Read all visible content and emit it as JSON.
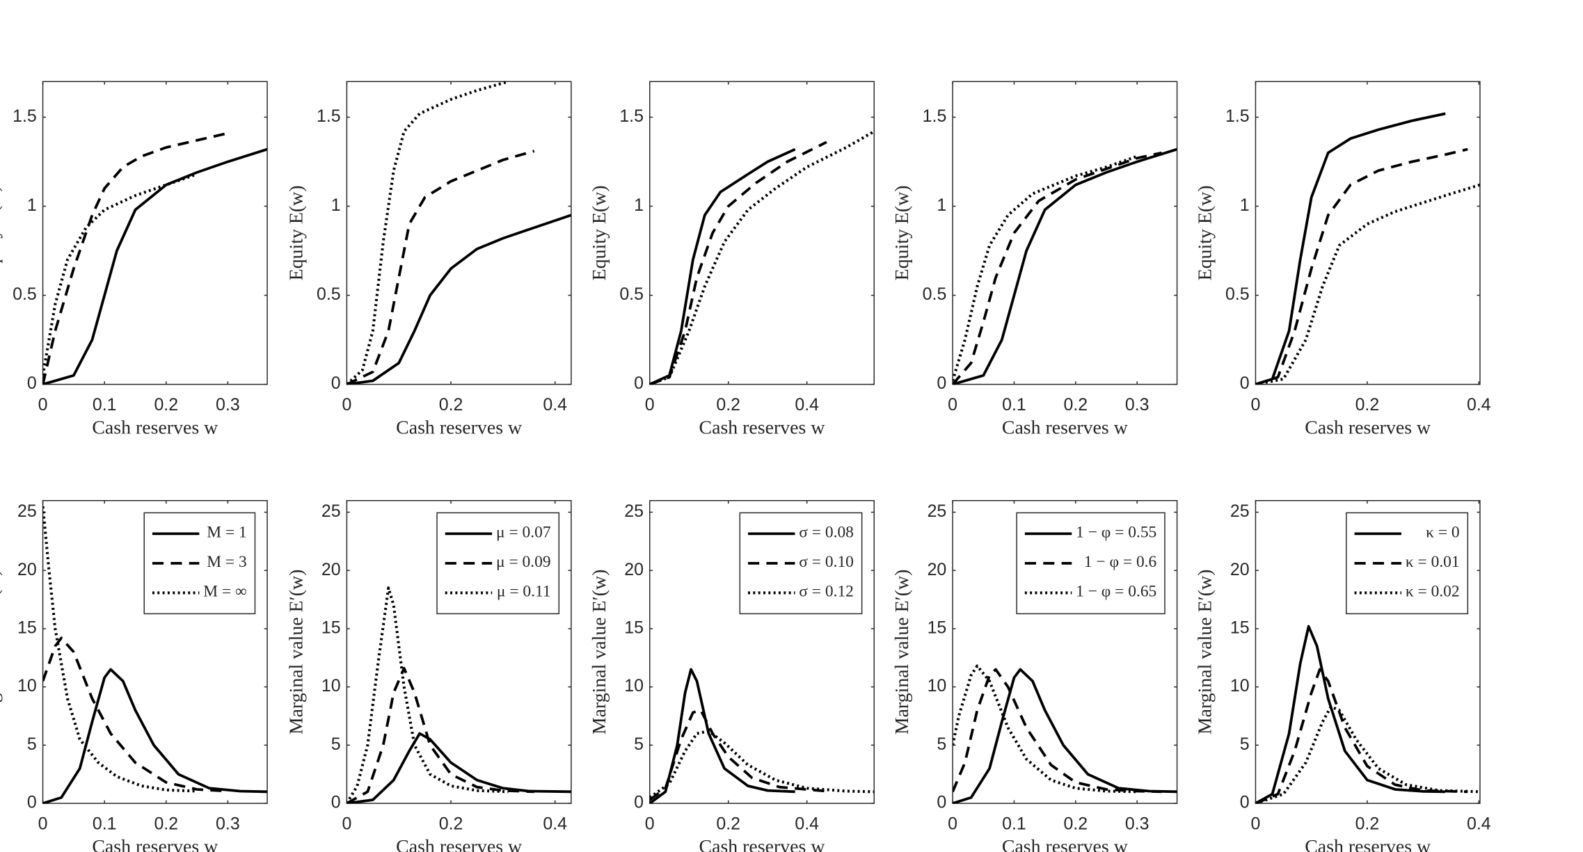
{
  "chart_data": [
    {
      "type": "line",
      "xlabel": "Cash reserves w",
      "ylabel": "Equity E(w)",
      "xlim": [
        0,
        0.364
      ],
      "ylim": [
        0,
        1.7
      ],
      "xticks": [
        0,
        0.1,
        0.2,
        0.3
      ],
      "yticks": [
        0,
        0.5,
        1,
        1.5
      ],
      "series": [
        {
          "color": "#000000",
          "dash": "solid",
          "x": [
            0,
            0.05,
            0.08,
            0.1,
            0.12,
            0.15,
            0.2,
            0.25,
            0.3,
            0.364
          ],
          "values": [
            0,
            0.05,
            0.25,
            0.5,
            0.75,
            0.98,
            1.12,
            1.19,
            1.25,
            1.32
          ]
        },
        {
          "color": "#000000",
          "dash": "dashed",
          "x": [
            0,
            0.02,
            0.05,
            0.08,
            0.1,
            0.13,
            0.16,
            0.2,
            0.25,
            0.3
          ],
          "values": [
            0,
            0.3,
            0.65,
            0.95,
            1.1,
            1.22,
            1.28,
            1.33,
            1.37,
            1.41
          ]
        },
        {
          "color": "#000000",
          "dash": "dotted",
          "x": [
            0,
            0.02,
            0.04,
            0.07,
            0.1,
            0.15,
            0.2,
            0.25
          ],
          "values": [
            0.05,
            0.45,
            0.7,
            0.88,
            0.98,
            1.06,
            1.12,
            1.18
          ]
        }
      ]
    },
    {
      "type": "line",
      "xlabel": "Cash reserves w",
      "ylabel": "Equity E(w)",
      "xlim": [
        0,
        0.431
      ],
      "ylim": [
        0,
        1.7
      ],
      "xticks": [
        0,
        0.2,
        0.4
      ],
      "yticks": [
        0,
        0.5,
        1,
        1.5
      ],
      "series": [
        {
          "color": "#000000",
          "dash": "solid",
          "x": [
            0,
            0.05,
            0.1,
            0.13,
            0.16,
            0.2,
            0.25,
            0.3,
            0.35,
            0.431
          ],
          "values": [
            0,
            0.02,
            0.12,
            0.3,
            0.5,
            0.65,
            0.76,
            0.82,
            0.87,
            0.95
          ]
        },
        {
          "color": "#000000",
          "dash": "dashed",
          "x": [
            0,
            0.05,
            0.08,
            0.1,
            0.12,
            0.15,
            0.2,
            0.25,
            0.3,
            0.36
          ],
          "values": [
            0,
            0.07,
            0.3,
            0.6,
            0.9,
            1.05,
            1.14,
            1.2,
            1.26,
            1.31
          ]
        },
        {
          "color": "#000000",
          "dash": "dotted",
          "x": [
            0,
            0.03,
            0.05,
            0.07,
            0.09,
            0.11,
            0.14,
            0.2,
            0.25,
            0.31
          ],
          "values": [
            0,
            0.08,
            0.3,
            0.8,
            1.2,
            1.42,
            1.52,
            1.6,
            1.65,
            1.7
          ]
        }
      ]
    },
    {
      "type": "line",
      "xlabel": "Cash reserves w",
      "ylabel": "Equity E(w)",
      "xlim": [
        0,
        0.571
      ],
      "ylim": [
        0,
        1.7
      ],
      "xticks": [
        0,
        0.2,
        0.4
      ],
      "yticks": [
        0,
        0.5,
        1,
        1.5
      ],
      "series": [
        {
          "color": "#000000",
          "dash": "solid",
          "x": [
            0,
            0.05,
            0.08,
            0.11,
            0.14,
            0.18,
            0.25,
            0.3,
            0.37
          ],
          "values": [
            0,
            0.05,
            0.3,
            0.7,
            0.95,
            1.08,
            1.18,
            1.25,
            1.32
          ]
        },
        {
          "color": "#000000",
          "dash": "dashed",
          "x": [
            0,
            0.05,
            0.09,
            0.12,
            0.16,
            0.2,
            0.27,
            0.35,
            0.45
          ],
          "values": [
            0,
            0.04,
            0.3,
            0.6,
            0.85,
            1.0,
            1.13,
            1.25,
            1.36
          ]
        },
        {
          "color": "#000000",
          "dash": "dotted",
          "x": [
            0,
            0.05,
            0.1,
            0.14,
            0.19,
            0.25,
            0.32,
            0.4,
            0.5,
            0.571
          ],
          "values": [
            0,
            0.04,
            0.3,
            0.55,
            0.8,
            0.98,
            1.1,
            1.22,
            1.33,
            1.42
          ]
        }
      ]
    },
    {
      "type": "line",
      "xlabel": "Cash reserves w",
      "ylabel": "Equity E(w)",
      "xlim": [
        0,
        0.365
      ],
      "ylim": [
        0,
        1.7
      ],
      "xticks": [
        0,
        0.1,
        0.2,
        0.3
      ],
      "yticks": [
        0,
        0.5,
        1,
        1.5
      ],
      "series": [
        {
          "color": "#000000",
          "dash": "solid",
          "x": [
            0,
            0.05,
            0.08,
            0.1,
            0.12,
            0.15,
            0.2,
            0.25,
            0.3,
            0.365
          ],
          "values": [
            0,
            0.05,
            0.25,
            0.5,
            0.75,
            0.98,
            1.12,
            1.19,
            1.25,
            1.32
          ]
        },
        {
          "color": "#000000",
          "dash": "dashed",
          "x": [
            0,
            0.03,
            0.05,
            0.07,
            0.1,
            0.14,
            0.2,
            0.25,
            0.3,
            0.34
          ],
          "values": [
            0,
            0.12,
            0.35,
            0.6,
            0.85,
            1.03,
            1.15,
            1.21,
            1.27,
            1.3
          ]
        },
        {
          "color": "#000000",
          "dash": "dotted",
          "x": [
            0,
            0.02,
            0.04,
            0.06,
            0.09,
            0.13,
            0.2,
            0.25,
            0.3
          ],
          "values": [
            0.02,
            0.25,
            0.55,
            0.78,
            0.95,
            1.07,
            1.17,
            1.22,
            1.28
          ]
        }
      ]
    },
    {
      "type": "line",
      "xlabel": "Cash reserves w",
      "ylabel": "Equity E(w)",
      "xlim": [
        0,
        0.402
      ],
      "ylim": [
        0,
        1.7
      ],
      "xticks": [
        0,
        0.2,
        0.4
      ],
      "yticks": [
        0,
        0.5,
        1,
        1.5
      ],
      "series": [
        {
          "color": "#000000",
          "dash": "solid",
          "x": [
            0,
            0.03,
            0.06,
            0.08,
            0.1,
            0.13,
            0.17,
            0.22,
            0.28,
            0.34
          ],
          "values": [
            0,
            0.03,
            0.3,
            0.7,
            1.05,
            1.3,
            1.38,
            1.43,
            1.48,
            1.52
          ]
        },
        {
          "color": "#000000",
          "dash": "dashed",
          "x": [
            0,
            0.04,
            0.07,
            0.1,
            0.13,
            0.17,
            0.22,
            0.28,
            0.34,
            0.38
          ],
          "values": [
            0,
            0.04,
            0.3,
            0.65,
            0.95,
            1.12,
            1.2,
            1.25,
            1.29,
            1.32
          ]
        },
        {
          "color": "#000000",
          "dash": "dotted",
          "x": [
            0,
            0.05,
            0.09,
            0.12,
            0.15,
            0.2,
            0.25,
            0.3,
            0.35,
            0.402
          ],
          "values": [
            0,
            0.03,
            0.25,
            0.55,
            0.78,
            0.9,
            0.97,
            1.02,
            1.07,
            1.12
          ]
        }
      ]
    },
    {
      "type": "line",
      "xlabel": "Cash reserves w",
      "ylabel": "Marginal value E′(w)",
      "xlim": [
        0,
        0.364
      ],
      "ylim": [
        0,
        26
      ],
      "xticks": [
        0,
        0.1,
        0.2,
        0.3
      ],
      "yticks": [
        0,
        5,
        10,
        15,
        20,
        25
      ],
      "legend": "upper right",
      "series": [
        {
          "name": "M = 1",
          "color": "#000000",
          "dash": "solid",
          "x": [
            0,
            0.03,
            0.06,
            0.08,
            0.1,
            0.11,
            0.13,
            0.15,
            0.18,
            0.22,
            0.27,
            0.32,
            0.364
          ],
          "values": [
            0,
            0.5,
            3,
            7,
            10.8,
            11.5,
            10.5,
            8,
            5,
            2.5,
            1.3,
            1.05,
            1
          ]
        },
        {
          "name": "M = 3",
          "color": "#000000",
          "dash": "dashed",
          "x": [
            0,
            0.02,
            0.03,
            0.05,
            0.08,
            0.11,
            0.15,
            0.2,
            0.25,
            0.3
          ],
          "values": [
            10.5,
            13.5,
            14.2,
            13,
            9,
            6,
            3.5,
            1.8,
            1.2,
            1.05
          ]
        },
        {
          "name": "M = ∞",
          "color": "#000000",
          "dash": "dotted",
          "x": [
            0,
            0.01,
            0.02,
            0.04,
            0.06,
            0.09,
            0.12,
            0.16,
            0.2,
            0.25
          ],
          "values": [
            25.5,
            20,
            15,
            9,
            5.5,
            3.5,
            2.3,
            1.5,
            1.15,
            1.05
          ]
        }
      ]
    },
    {
      "type": "line",
      "xlabel": "Cash reserves w",
      "ylabel": "Marginal value E′(w)",
      "xlim": [
        0,
        0.431
      ],
      "ylim": [
        0,
        26
      ],
      "xticks": [
        0,
        0.2,
        0.4
      ],
      "yticks": [
        0,
        5,
        10,
        15,
        20,
        25
      ],
      "legend": "upper right",
      "series": [
        {
          "name": "μ = 0.07",
          "color": "#000000",
          "dash": "solid",
          "x": [
            0,
            0.05,
            0.09,
            0.12,
            0.14,
            0.16,
            0.2,
            0.25,
            0.3,
            0.35,
            0.431
          ],
          "values": [
            0,
            0.3,
            2,
            4.5,
            6,
            5.5,
            3.5,
            2,
            1.3,
            1.05,
            1
          ]
        },
        {
          "name": "μ = 0.09",
          "color": "#000000",
          "dash": "dashed",
          "x": [
            0,
            0.04,
            0.07,
            0.09,
            0.11,
            0.13,
            0.16,
            0.2,
            0.25,
            0.3,
            0.36
          ],
          "values": [
            0,
            1,
            5,
            9.5,
            11.6,
            9.5,
            5,
            2.5,
            1.4,
            1.1,
            1
          ]
        },
        {
          "name": "μ = 0.11",
          "color": "#000000",
          "dash": "dotted",
          "x": [
            0,
            0.02,
            0.04,
            0.06,
            0.08,
            0.09,
            0.11,
            0.13,
            0.16,
            0.2,
            0.25,
            0.31
          ],
          "values": [
            0,
            1.5,
            5,
            12,
            18.5,
            17,
            10,
            5,
            2.5,
            1.5,
            1.1,
            1
          ]
        }
      ]
    },
    {
      "type": "line",
      "xlabel": "Cash reserves w",
      "ylabel": "Marginal value E′(w)",
      "xlim": [
        0,
        0.571
      ],
      "ylim": [
        0,
        26
      ],
      "xticks": [
        0,
        0.2,
        0.4
      ],
      "yticks": [
        0,
        5,
        10,
        15,
        20,
        25
      ],
      "legend": "upper right",
      "series": [
        {
          "name": "σ = 0.08",
          "color": "#000000",
          "dash": "solid",
          "x": [
            0,
            0.04,
            0.07,
            0.09,
            0.105,
            0.12,
            0.15,
            0.19,
            0.25,
            0.3,
            0.37
          ],
          "values": [
            0,
            1,
            5,
            9.5,
            11.5,
            10.5,
            6,
            3,
            1.5,
            1.1,
            1
          ]
        },
        {
          "name": "σ = 0.10",
          "color": "#000000",
          "dash": "dashed",
          "x": [
            0,
            0.04,
            0.08,
            0.11,
            0.13,
            0.16,
            0.2,
            0.26,
            0.33,
            0.45
          ],
          "values": [
            0.3,
            1.3,
            5.5,
            7.8,
            8,
            6,
            4,
            2.2,
            1.4,
            1.05
          ]
        },
        {
          "name": "σ = 0.12",
          "color": "#000000",
          "dash": "dotted",
          "x": [
            0,
            0.05,
            0.09,
            0.12,
            0.15,
            0.19,
            0.25,
            0.32,
            0.4,
            0.5,
            0.571
          ],
          "values": [
            0.5,
            1.7,
            4.5,
            6,
            6.2,
            5.2,
            3.3,
            2,
            1.3,
            1.05,
            1
          ]
        }
      ]
    },
    {
      "type": "line",
      "xlabel": "Cash reserves w",
      "ylabel": "Marginal value E′(w)",
      "xlim": [
        0,
        0.365
      ],
      "ylim": [
        0,
        26
      ],
      "xticks": [
        0,
        0.1,
        0.2,
        0.3
      ],
      "yticks": [
        0,
        5,
        10,
        15,
        20,
        25
      ],
      "legend": "upper right",
      "series": [
        {
          "name": "1 − φ = 0.55",
          "color": "#000000",
          "dash": "solid",
          "x": [
            0,
            0.03,
            0.06,
            0.08,
            0.1,
            0.11,
            0.13,
            0.15,
            0.18,
            0.22,
            0.27,
            0.32,
            0.365
          ],
          "values": [
            0,
            0.5,
            3,
            7,
            10.8,
            11.5,
            10.5,
            8,
            5,
            2.5,
            1.3,
            1.05,
            1
          ]
        },
        {
          "name": "1 − φ = 0.6",
          "color": "#000000",
          "dash": "dashed",
          "x": [
            0,
            0.02,
            0.04,
            0.06,
            0.07,
            0.09,
            0.12,
            0.16,
            0.2,
            0.25,
            0.3,
            0.34
          ],
          "values": [
            1,
            3.5,
            8,
            11,
            11.5,
            10,
            6.5,
            3.3,
            1.8,
            1.2,
            1.05,
            1
          ]
        },
        {
          "name": "1 − φ = 0.65",
          "color": "#000000",
          "dash": "dotted",
          "x": [
            0,
            0.01,
            0.03,
            0.04,
            0.06,
            0.09,
            0.12,
            0.16,
            0.2,
            0.25,
            0.3
          ],
          "values": [
            5,
            7.5,
            11,
            11.8,
            10.5,
            6.5,
            3.8,
            2,
            1.3,
            1.05,
            1
          ]
        }
      ]
    },
    {
      "type": "line",
      "xlabel": "Cash reserves w",
      "ylabel": "Marginal value E′(w)",
      "xlim": [
        0,
        0.402
      ],
      "ylim": [
        0,
        26
      ],
      "xticks": [
        0,
        0.2,
        0.4
      ],
      "yticks": [
        0,
        5,
        10,
        15,
        20,
        25
      ],
      "legend": "upper right",
      "series": [
        {
          "name": "κ = 0",
          "color": "#000000",
          "dash": "solid",
          "x": [
            0,
            0.03,
            0.06,
            0.08,
            0.095,
            0.11,
            0.13,
            0.16,
            0.2,
            0.25,
            0.3,
            0.34
          ],
          "values": [
            0,
            0.8,
            6,
            12,
            15.2,
            13.5,
            9,
            4.5,
            2,
            1.2,
            1.03,
            1
          ]
        },
        {
          "name": "κ = 0.01",
          "color": "#000000",
          "dash": "dashed",
          "x": [
            0,
            0.04,
            0.07,
            0.1,
            0.115,
            0.13,
            0.16,
            0.2,
            0.25,
            0.3,
            0.38
          ],
          "values": [
            0,
            0.8,
            4.5,
            9.5,
            11.5,
            10.5,
            6.5,
            3.2,
            1.6,
            1.1,
            1
          ]
        },
        {
          "name": "κ = 0.02",
          "color": "#000000",
          "dash": "dotted",
          "x": [
            0,
            0.05,
            0.09,
            0.12,
            0.135,
            0.15,
            0.18,
            0.22,
            0.27,
            0.33,
            0.402
          ],
          "values": [
            0,
            0.8,
            3.5,
            7,
            8.3,
            8,
            5.5,
            3,
            1.6,
            1.1,
            1
          ]
        }
      ]
    }
  ]
}
